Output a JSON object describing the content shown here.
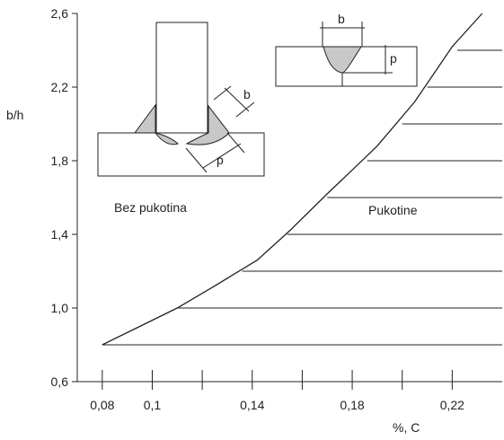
{
  "chart_data": {
    "type": "line",
    "title": "",
    "xlabel": "%, C",
    "ylabel": "b/h",
    "xlim": [
      0.07,
      0.24
    ],
    "ylim": [
      0.6,
      2.6
    ],
    "x_ticks": [
      0.08,
      0.1,
      0.12,
      0.14,
      0.16,
      0.18,
      0.2,
      0.22
    ],
    "x_tick_labels": [
      "0,08",
      "0,1",
      "",
      "0,14",
      "",
      "0,18",
      "",
      "0,22"
    ],
    "y_ticks": [
      0.6,
      1.0,
      1.4,
      1.8,
      2.2,
      2.6
    ],
    "y_tick_labels": [
      "0,6",
      "1,0",
      "1,4",
      "1,8",
      "2,2",
      "2,6"
    ],
    "series": [
      {
        "x": [
          0.08,
          0.095,
          0.11,
          0.125,
          0.142,
          0.155,
          0.17,
          0.18,
          0.19,
          0.205,
          0.22,
          0.232
        ],
        "values": [
          0.8,
          0.9,
          1.0,
          1.12,
          1.26,
          1.42,
          1.62,
          1.75,
          1.88,
          2.12,
          2.42,
          2.6
        ]
      }
    ],
    "region_boundaries": [
      {
        "y": 0.8,
        "x_start": 0.08
      },
      {
        "y": 1.0,
        "x_start": 0.11
      },
      {
        "y": 1.2,
        "x_start": 0.136
      },
      {
        "y": 1.4,
        "x_start": 0.154
      },
      {
        "y": 1.6,
        "x_start": 0.17
      },
      {
        "y": 1.8,
        "x_start": 0.186
      },
      {
        "y": 2.0,
        "x_start": 0.2
      },
      {
        "y": 2.2,
        "x_start": 0.21
      },
      {
        "y": 2.4,
        "x_start": 0.222
      }
    ],
    "annotations": [
      {
        "text": "Bez pukotina",
        "region": "left"
      },
      {
        "text": "Pukotine",
        "region": "right"
      }
    ],
    "inset_labels": {
      "fillet_b": "b",
      "fillet_p": "p",
      "butt_b": "b",
      "butt_p": "p"
    },
    "grid": false,
    "legend": "none"
  }
}
